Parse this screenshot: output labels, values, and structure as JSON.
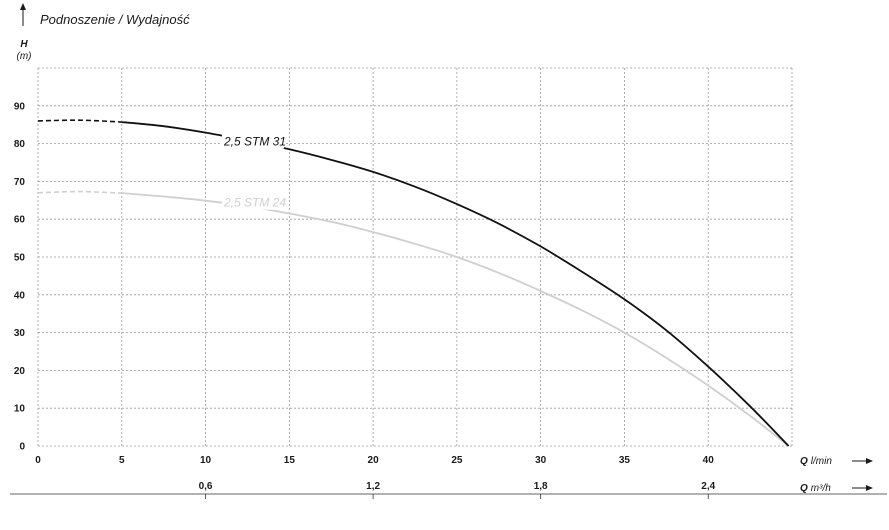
{
  "chart_data": {
    "type": "line",
    "title": "Podnoszenie / Wydajność",
    "ylabel": "H",
    "yunit": "(m)",
    "xlabel": "Q",
    "xunit": "l/min",
    "x2label": "Q",
    "x2unit": "m³/h",
    "xlim": [
      0,
      45
    ],
    "ylim": [
      0,
      100
    ],
    "x_ticks": [
      "0",
      "5",
      "10",
      "15",
      "20",
      "25",
      "30",
      "35",
      "40"
    ],
    "y_ticks": [
      "0",
      "10",
      "20",
      "30",
      "40",
      "50",
      "60",
      "70",
      "80",
      "90"
    ],
    "x2_ticks": [
      {
        "label": "0,6",
        "at": 10
      },
      {
        "label": "1,2",
        "at": 20
      },
      {
        "label": "1,8",
        "at": 30
      },
      {
        "label": "2,4",
        "at": 40
      }
    ],
    "grid": true,
    "series": [
      {
        "name": "2,5 STM 31",
        "color": "#111111",
        "dashed_until": 5,
        "label_at": 11.1,
        "label_y": 79.5,
        "points": [
          [
            0,
            86
          ],
          [
            2.5,
            86.2
          ],
          [
            5,
            85.7
          ],
          [
            7.5,
            84.6
          ],
          [
            10,
            82.9
          ],
          [
            12.5,
            80.8
          ],
          [
            15,
            78.5
          ],
          [
            17.5,
            75.7
          ],
          [
            20,
            72.5
          ],
          [
            22.5,
            68.6
          ],
          [
            25,
            64
          ],
          [
            27.5,
            58.8
          ],
          [
            30,
            52.8
          ],
          [
            32.5,
            46
          ],
          [
            35,
            38.8
          ],
          [
            37.5,
            30.6
          ],
          [
            40,
            21
          ],
          [
            42.5,
            10.5
          ],
          [
            44.8,
            0
          ]
        ]
      },
      {
        "name": "2,5 STM 24",
        "color": "#cfcfcf",
        "dashed_until": 5,
        "label_at": 11.1,
        "label_y": 63.3,
        "points": [
          [
            0,
            67
          ],
          [
            2.5,
            67.3
          ],
          [
            5,
            66.9
          ],
          [
            7.5,
            66
          ],
          [
            10,
            64.9
          ],
          [
            12.5,
            63.4
          ],
          [
            15,
            61.5
          ],
          [
            17.5,
            59.3
          ],
          [
            20,
            56.6
          ],
          [
            22.5,
            53.5
          ],
          [
            25,
            50
          ],
          [
            27.5,
            45.8
          ],
          [
            30,
            41
          ],
          [
            32.5,
            35.8
          ],
          [
            35,
            30
          ],
          [
            37.5,
            23.3
          ],
          [
            40,
            16
          ],
          [
            42.5,
            8
          ],
          [
            44.8,
            0
          ]
        ]
      }
    ]
  }
}
